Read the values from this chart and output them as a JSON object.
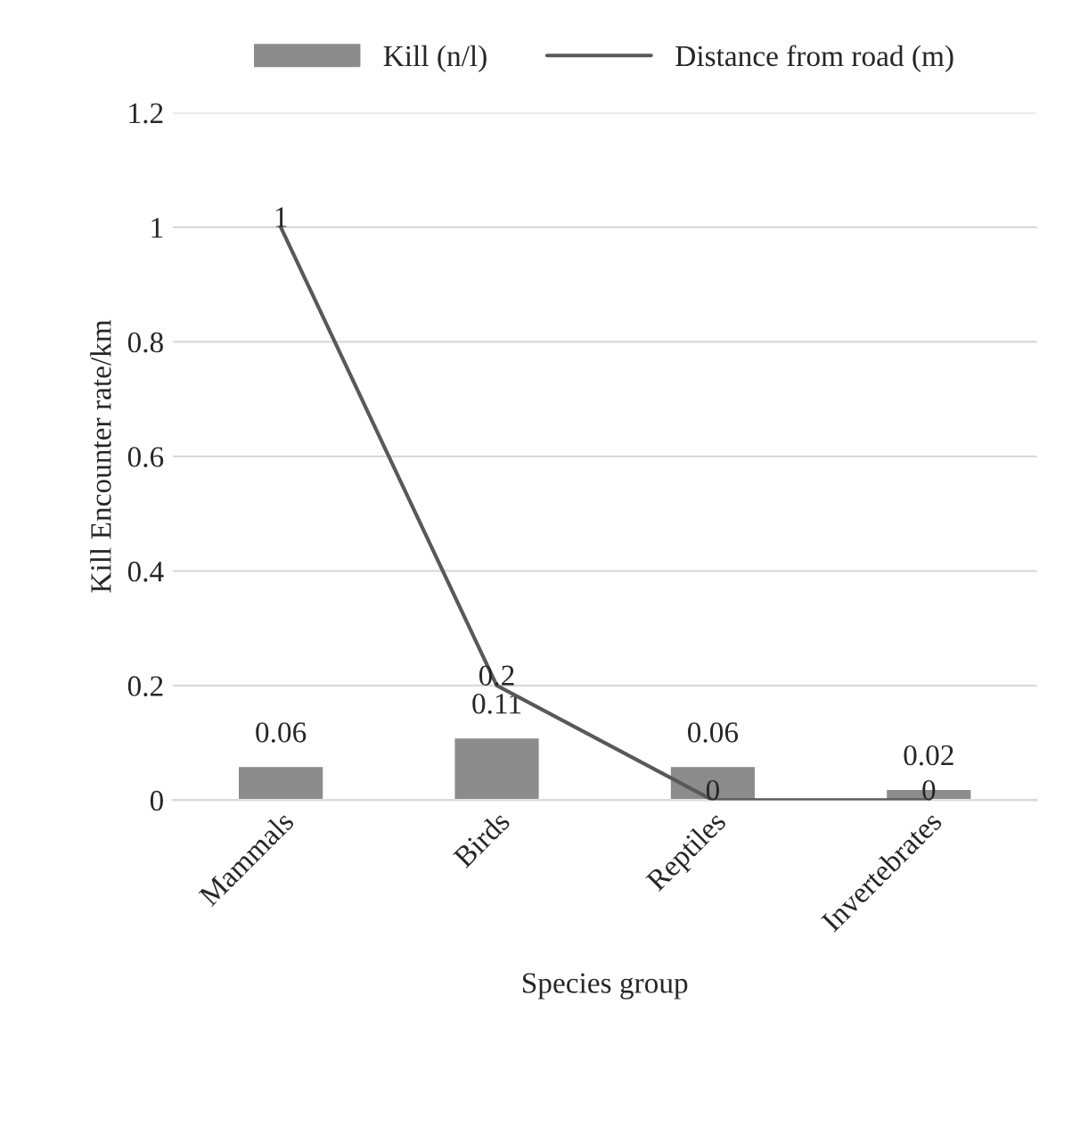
{
  "chart_data": {
    "type": "bar",
    "xlabel": "Species group",
    "ylabel": "Kill Encounter rate/km",
    "categories": [
      "Mammals",
      "Birds",
      "Reptiles",
      "Invertebrates"
    ],
    "series": [
      {
        "name": "Kill (n/l)",
        "color": "#8c8c8c",
        "values": [
          0.06,
          0.11,
          0.06,
          0.02
        ]
      },
      {
        "name": "Distance from road (m)",
        "type": "line",
        "color": "#595959",
        "values": [
          1,
          0.2,
          0,
          0
        ]
      }
    ],
    "ylim": [
      0,
      1.2
    ],
    "yticks": [
      0,
      0.2,
      0.4,
      0.6,
      0.8,
      1,
      1.2
    ],
    "grid": "y",
    "legend": "top",
    "data_labels": true,
    "line_style": "solid"
  }
}
